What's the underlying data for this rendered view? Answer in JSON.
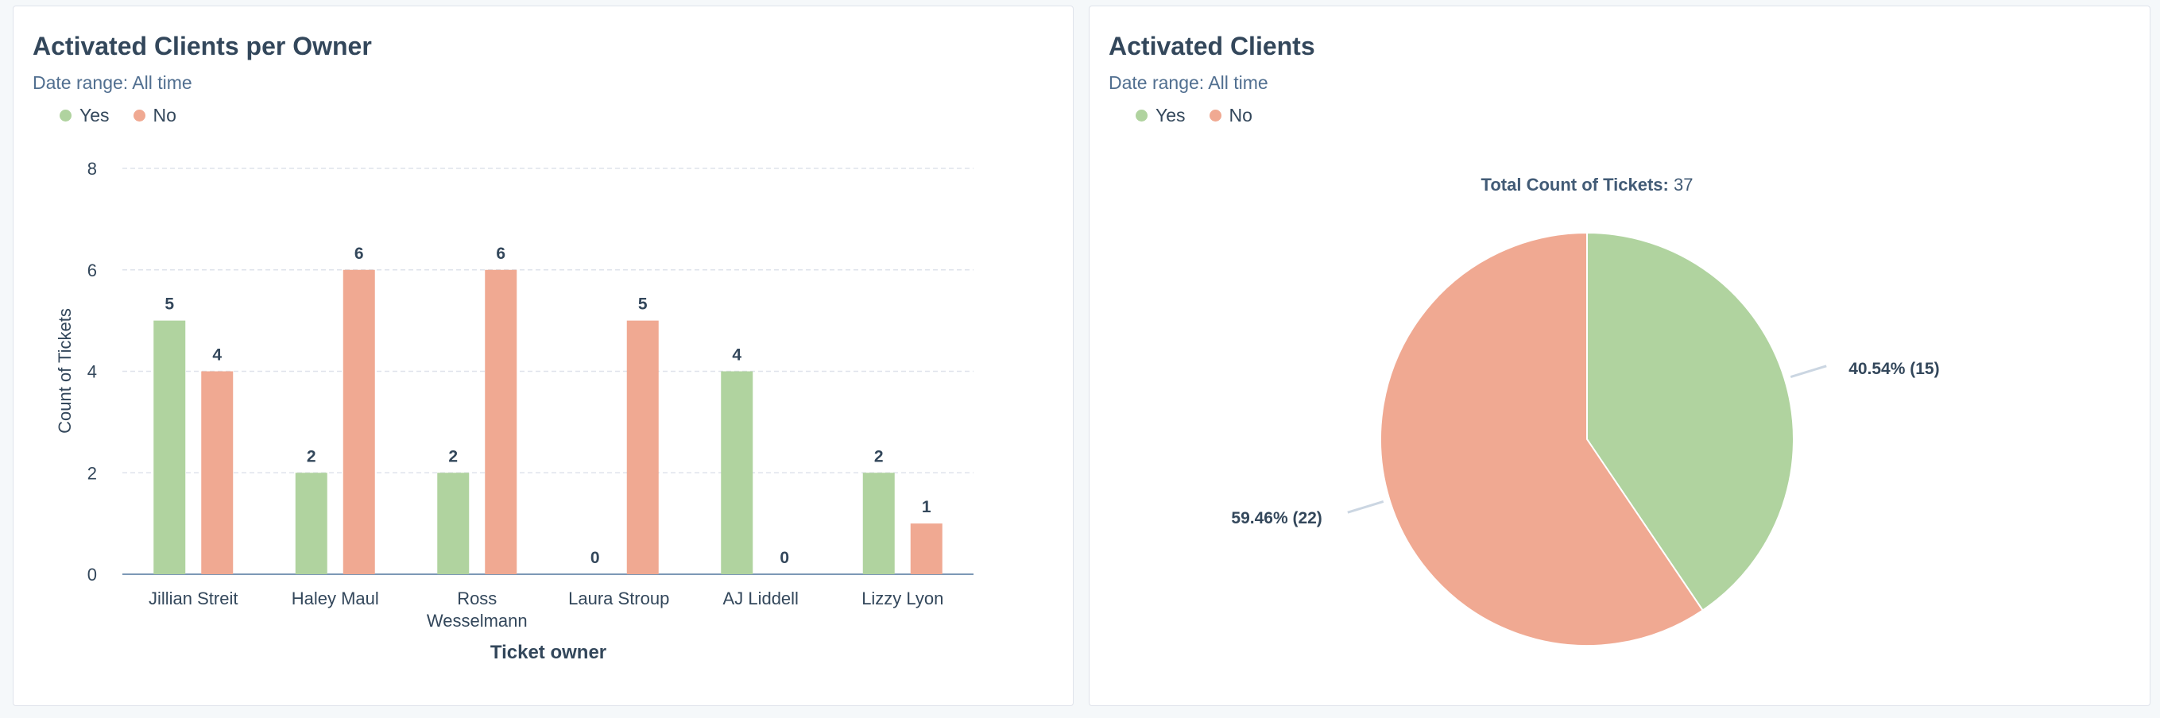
{
  "colors": {
    "yes": "#b0d39f",
    "no": "#f0a992",
    "text": "#33475b",
    "grid": "#dfe3eb",
    "axis": "#7c98b6"
  },
  "cards": [
    {
      "title": "Activated Clients per Owner",
      "date_range": "Date range: All time"
    },
    {
      "title": "Activated Clients",
      "date_range": "Date range: All time"
    }
  ],
  "legend": [
    {
      "label": "Yes",
      "color": "#b0d39f"
    },
    {
      "label": "No",
      "color": "#f0a992"
    }
  ],
  "chart_data": [
    {
      "type": "bar",
      "title": "Activated Clients per Owner",
      "xlabel": "Ticket owner",
      "ylabel": "Count of Tickets",
      "ylim": [
        0,
        8
      ],
      "yticks": [
        "0",
        "2",
        "4",
        "6",
        "8"
      ],
      "grid": true,
      "legend_position": "top-left",
      "categories": [
        [
          "Jillian Streit"
        ],
        [
          "Haley Maul"
        ],
        [
          "Ross",
          "Wesselmann"
        ],
        [
          "Laura Stroup"
        ],
        [
          "AJ Liddell"
        ],
        [
          "Lizzy Lyon"
        ]
      ],
      "series": [
        {
          "name": "Yes",
          "color": "#b0d39f",
          "values": [
            5,
            2,
            2,
            0,
            4,
            2
          ]
        },
        {
          "name": "No",
          "color": "#f0a992",
          "values": [
            4,
            6,
            6,
            5,
            0,
            1
          ]
        }
      ]
    },
    {
      "type": "pie",
      "title": "Activated Clients",
      "total_label": "Total Count of Tickets:",
      "total_value": "37",
      "legend_position": "top-left",
      "slices": [
        {
          "name": "Yes",
          "value": 15,
          "label": "40.54% (15)",
          "color": "#b0d39f"
        },
        {
          "name": "No",
          "value": 22,
          "label": "59.46% (22)",
          "color": "#f0a992"
        }
      ]
    }
  ]
}
